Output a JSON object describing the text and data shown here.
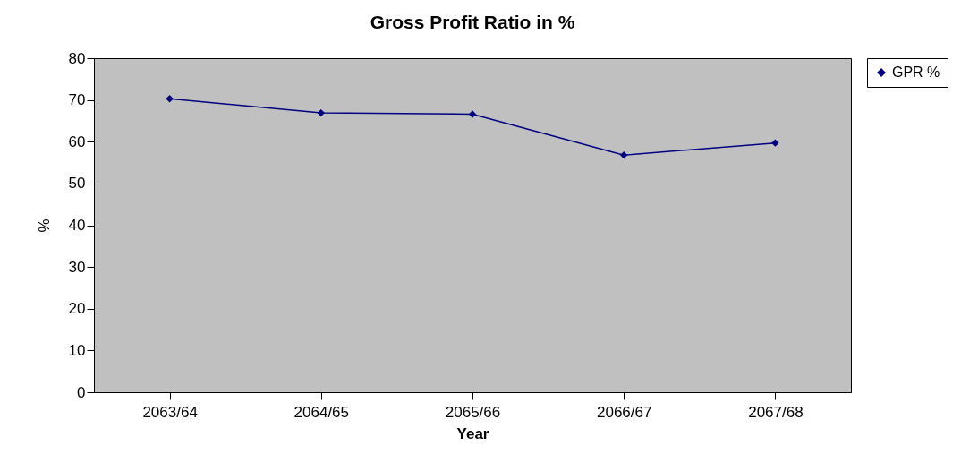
{
  "chart_data": {
    "type": "line",
    "title": "Gross Profit Ratio in %",
    "xlabel": "Year",
    "ylabel": "%",
    "categories": [
      "2063/64",
      "2064/65",
      "2065/66",
      "2066/67",
      "2067/68"
    ],
    "series": [
      {
        "name": "GPR %",
        "color": "#000080",
        "values": [
          70.3,
          66.9,
          66.6,
          56.8,
          59.7
        ]
      }
    ],
    "ylim": [
      0,
      80
    ],
    "yticks": [
      0,
      10,
      20,
      30,
      40,
      50,
      60,
      70,
      80
    ],
    "grid": false,
    "legend": "right",
    "marker": "diamond",
    "line_style": "solid"
  }
}
